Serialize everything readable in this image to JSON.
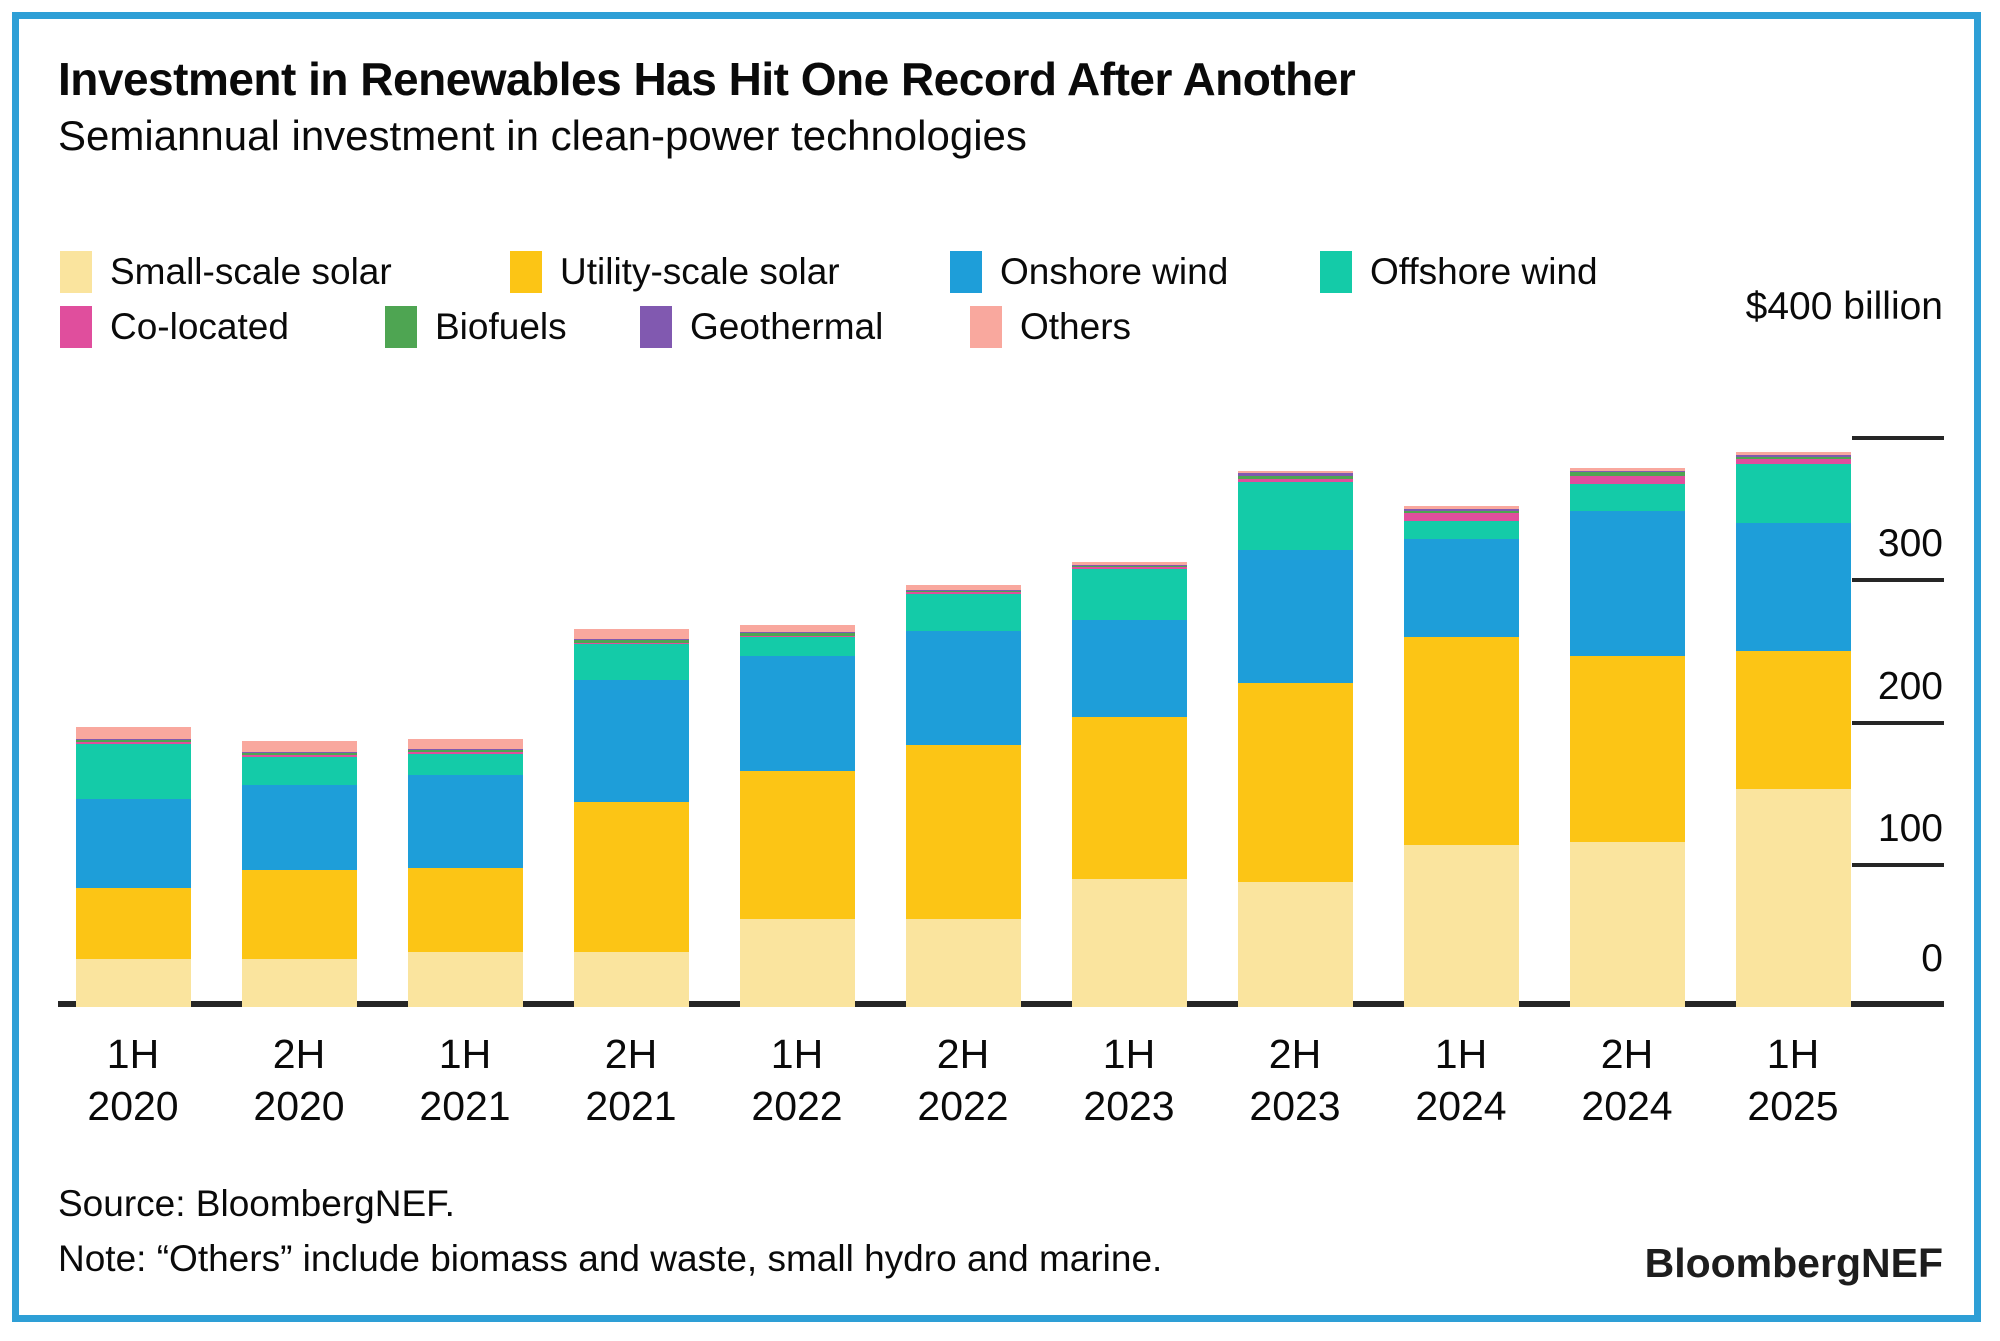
{
  "header": {
    "title": "Investment in Renewables Has Hit One Record After Another",
    "subtitle": "Semiannual investment in clean-power technologies"
  },
  "y_axis": {
    "top_label": "$400 billion",
    "ticks": [
      {
        "label": "300",
        "value": 300
      },
      {
        "label": "200",
        "value": 200
      },
      {
        "label": "100",
        "value": 100
      },
      {
        "label": "0",
        "value": 0
      }
    ]
  },
  "footer": {
    "source": "Source: BloombergNEF.",
    "note": "Note: “Others” include biomass and waste, small hydro and marine.",
    "logo": "BloombergNEF"
  },
  "colors": {
    "axis": "#262626",
    "border": "#2E9FD6"
  },
  "chart_data": {
    "type": "bar",
    "stacked": true,
    "title": "Investment in Renewables Has Hit One Record After Another",
    "subtitle": "Semiannual investment in clean-power technologies",
    "unit": "USD billion",
    "ylim": [
      0,
      400
    ],
    "grid": false,
    "legend_position": "top",
    "categories": [
      "1H 2020",
      "2H 2020",
      "1H 2021",
      "2H 2021",
      "1H 2022",
      "2H 2022",
      "1H 2023",
      "2H 2023",
      "1H 2024",
      "2H 2024",
      "1H 2025"
    ],
    "series": [
      {
        "name": "Small-scale solar",
        "key": "small-scale-solar",
        "color": "#FAE49E",
        "values": [
          34,
          34,
          39,
          39,
          62,
          62,
          90,
          88,
          114,
          116,
          153
        ]
      },
      {
        "name": "Utility-scale solar",
        "key": "utility-scale-solar",
        "color": "#FCC515",
        "values": [
          50,
          62,
          59,
          105,
          104,
          122,
          114,
          140,
          146,
          131,
          97
        ]
      },
      {
        "name": "Onshore wind",
        "key": "onshore-wind",
        "color": "#1E9ED9",
        "values": [
          62,
          60,
          65,
          86,
          81,
          80,
          68,
          93,
          69,
          102,
          90
        ]
      },
      {
        "name": "Offshore wind",
        "key": "offshore-wind",
        "color": "#14CBA8",
        "values": [
          39,
          20,
          15,
          25,
          13,
          26,
          36,
          48,
          13,
          19,
          42
        ]
      },
      {
        "name": "Co-located",
        "key": "co-located",
        "color": "#E04E9D",
        "values": [
          1,
          1,
          1,
          1,
          1,
          1.5,
          1,
          2,
          5,
          5.5,
          3
        ]
      },
      {
        "name": "Biofuels",
        "key": "biofuels",
        "color": "#4EA552",
        "values": [
          2,
          1.5,
          2,
          2,
          2,
          1.5,
          1.5,
          2,
          2,
          3,
          2
        ]
      },
      {
        "name": "Geothermal",
        "key": "geothermal",
        "color": "#8159B0",
        "values": [
          0.5,
          0.5,
          0.5,
          0.5,
          0.5,
          0.5,
          0.5,
          2.5,
          1,
          0.5,
          1
        ]
      },
      {
        "name": "Others",
        "key": "others",
        "color": "#F9A89E",
        "values": [
          8,
          8,
          7,
          7,
          5,
          3.5,
          1.5,
          1,
          2,
          2,
          2
        ]
      }
    ],
    "totals_approx": [
      196.5,
      187,
      188.5,
      265.5,
      268.5,
      297,
      312.5,
      377,
      352,
      379.5,
      390
    ]
  }
}
